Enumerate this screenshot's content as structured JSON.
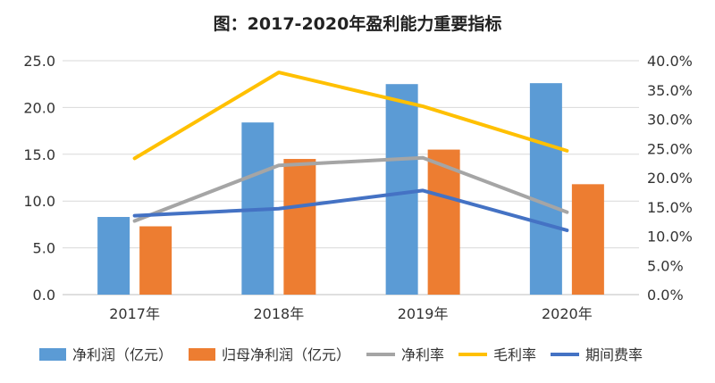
{
  "chart_data": {
    "type": "bar",
    "title": "图：2017-2020年盈利能力重要指标",
    "categories": [
      "2017年",
      "2018年",
      "2019年",
      "2020年"
    ],
    "y_left": {
      "min": 0,
      "max": 25,
      "step": 5,
      "ticks": [
        "0.0",
        "5.0",
        "10.0",
        "15.0",
        "20.0",
        "25.0"
      ]
    },
    "y_right": {
      "min": 0,
      "max": 40,
      "step": 5,
      "ticks": [
        "0.0%",
        "5.0%",
        "10.0%",
        "15.0%",
        "20.0%",
        "25.0%",
        "30.0%",
        "35.0%",
        "40.0%"
      ]
    },
    "grid": true,
    "legend_position": "bottom",
    "bar_series": [
      {
        "name": "净利润（亿元）",
        "color": "#5b9bd5",
        "axis": "left",
        "values": [
          8.3,
          18.4,
          22.5,
          22.6
        ]
      },
      {
        "name": "归母净利润（亿元）",
        "color": "#ed7d31",
        "axis": "left",
        "values": [
          7.3,
          14.5,
          15.5,
          11.8
        ]
      }
    ],
    "line_series": [
      {
        "name": "净利率",
        "color": "#a5a5a5",
        "axis": "right",
        "values": [
          12.6,
          22.1,
          23.4,
          14.1
        ]
      },
      {
        "name": "毛利率",
        "color": "#ffc000",
        "axis": "right",
        "values": [
          23.3,
          38.0,
          32.2,
          24.6
        ]
      },
      {
        "name": "期间费率",
        "color": "#4472c4",
        "axis": "right",
        "values": [
          13.5,
          14.7,
          17.8,
          11.0
        ]
      }
    ]
  }
}
